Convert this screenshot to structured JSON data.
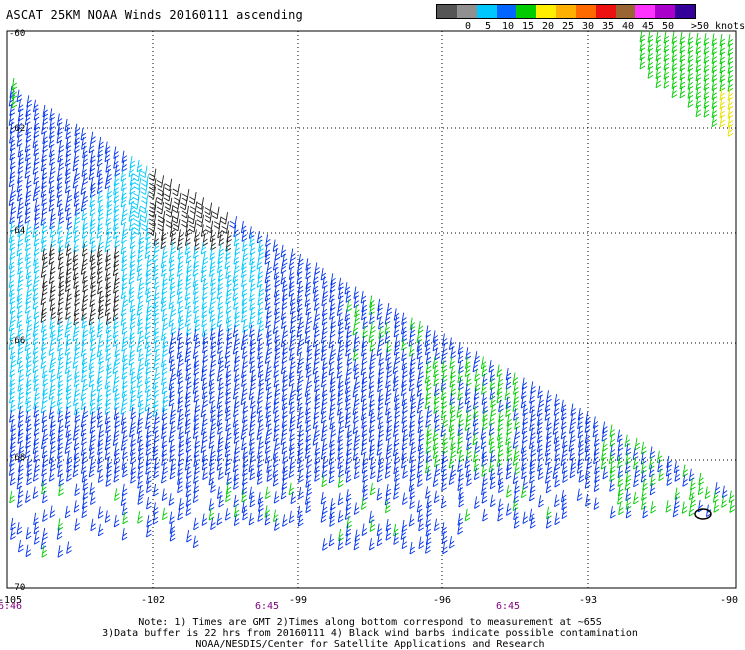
{
  "title": "ASCAT 25KM NOAA Winds 20160111 ascending",
  "scale": {
    "colors": [
      "#555555",
      "#909090",
      "#00c8ff",
      "#0066ff",
      "#00cc00",
      "#ffee00",
      "#ffb000",
      "#ff6a00",
      "#ee1111",
      "#996633",
      "#ff33ff",
      "#aa00cc",
      "#330099"
    ],
    "labels": [
      "0",
      "5",
      "10",
      "15",
      "20",
      "25",
      "30",
      "35",
      "40",
      "45",
      "50"
    ],
    "suffix": ">50 knots"
  },
  "axes": {
    "lat_ticks": [
      "-60",
      "-62",
      "-64",
      "-66",
      "-68",
      "-70"
    ],
    "lon_ticks": [
      "-105",
      "-102",
      "-99",
      "-96",
      "-93",
      "-90"
    ],
    "times": [
      "6:46",
      "6:45",
      "6:45"
    ]
  },
  "notes": {
    "line1": "Note: 1) Times are GMT 2)Times along bottom correspond to measurement at ~65S",
    "line2": "3)Data buffer is 22 hrs from 20160111 4) Black wind barbs indicate possible contamination",
    "line3": "NOAA/NESDIS/Center for Satellite Applications and Research"
  }
}
